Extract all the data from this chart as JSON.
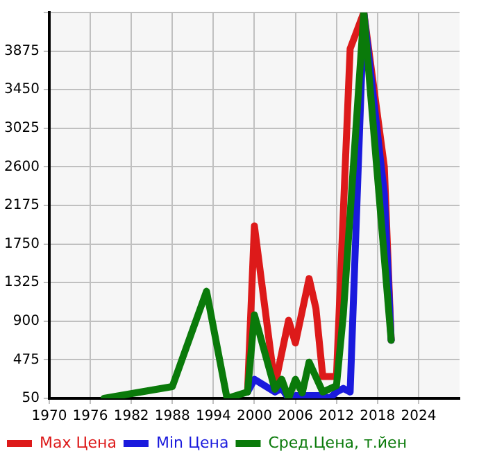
{
  "chart_data": {
    "type": "line",
    "xlim": [
      1970,
      2030
    ],
    "xticks": [
      1970,
      1976,
      1982,
      1988,
      1994,
      2000,
      2006,
      2012,
      2018,
      2024
    ],
    "ylim": [
      50,
      4300
    ],
    "yticks": [
      50,
      475,
      900,
      1325,
      1750,
      2175,
      2600,
      3025,
      3450,
      3875,
      {
        "value": 4300,
        "label": null
      }
    ],
    "grid": true,
    "legend": "bottom",
    "marker": "none",
    "series": [
      {
        "name": "Max Цена",
        "color": "#dd1a1a",
        "x": [
          1999,
          2000,
          2003,
          2005,
          2006,
          2008,
          2009,
          2010,
          2012,
          2014,
          2016,
          2019,
          2020
        ],
        "values": [
          120,
          1950,
          190,
          910,
          660,
          1370,
          1040,
          290,
          290,
          3900,
          4300,
          2600,
          690
        ]
      },
      {
        "name": "Min Цена",
        "color": "#1a1add",
        "x": [
          1999,
          2000,
          2003,
          2004,
          2005,
          2006,
          2010,
          2011,
          2012,
          2013,
          2014,
          2016,
          2019,
          2020
        ],
        "values": [
          120,
          260,
          120,
          160,
          50,
          80,
          80,
          50,
          120,
          160,
          120,
          4300,
          2300,
          690
        ]
      },
      {
        "name": "Сред.Цена, т.йен",
        "color": "#0a7a0a",
        "x": [
          1978,
          1988,
          1993,
          1996,
          1999,
          2000,
          2003,
          2004,
          2005,
          2006,
          2007,
          2008,
          2010,
          2012,
          2013,
          2016,
          2020
        ],
        "values": [
          50,
          180,
          1230,
          50,
          120,
          970,
          150,
          260,
          50,
          260,
          110,
          450,
          120,
          190,
          970,
          4300,
          690
        ]
      }
    ]
  }
}
